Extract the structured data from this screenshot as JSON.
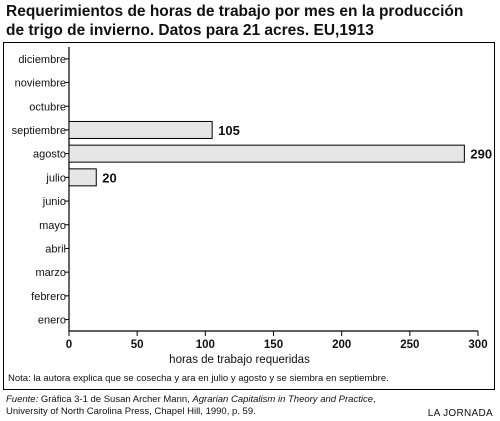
{
  "chart_data": {
    "type": "bar",
    "orientation": "horizontal",
    "title_line1": "Requerimientos de horas de trabajo por mes en la producción",
    "title_line2": "de trigo de invierno. Datos para 21 acres. EU,1913",
    "categories": [
      "diciembre",
      "noviembre",
      "octubre",
      "septiembre",
      "agosto",
      "julio",
      "junio",
      "mayo",
      "abril",
      "marzo",
      "febrero",
      "enero"
    ],
    "values": [
      null,
      null,
      null,
      105,
      290,
      20,
      null,
      null,
      null,
      null,
      null,
      null
    ],
    "data_labels": [
      "",
      "",
      "",
      "105",
      "290",
      "20",
      "",
      "",
      "",
      "",
      "",
      ""
    ],
    "xlabel": "horas de trabajo requeridas",
    "xlim": [
      0,
      300
    ],
    "xticks": [
      0,
      50,
      100,
      150,
      200,
      250,
      300
    ],
    "bar_color": "#e6e6e6",
    "grid": false,
    "note": "Nota: la autora explica que se cosecha y ara en julio y agosto y se siembra en septiembre.",
    "source_label": "Fuente:",
    "source_pre": " Gráfica 3-1 de Susan Archer Mann, ",
    "source_title": "Agrarian Capitalism in Theory and Practice",
    "source_post": ",",
    "source_line2": "University of North Carolina Press, Chapel Hill, 1990, p. 59.",
    "brand": "LA JORNADA"
  }
}
